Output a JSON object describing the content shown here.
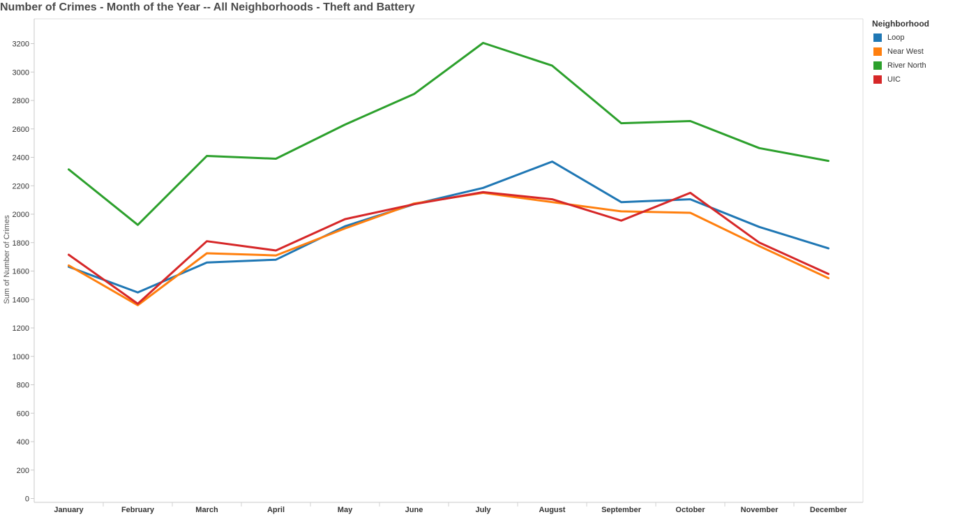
{
  "chart_data": {
    "type": "line",
    "title": "Number of Crimes - Month of the Year -- All Neighborhoods - Theft and Battery",
    "xlabel": "",
    "ylabel": "Sum of Number of Crimes",
    "ylim": [
      0,
      3300
    ],
    "yticks": [
      0,
      200,
      400,
      600,
      800,
      1000,
      1200,
      1400,
      1600,
      1800,
      2000,
      2200,
      2400,
      2600,
      2800,
      3000,
      3200
    ],
    "grid": false,
    "legend_position": "right",
    "legend_title": "Neighborhood",
    "categories": [
      "January",
      "February",
      "March",
      "April",
      "May",
      "June",
      "July",
      "August",
      "September",
      "October",
      "November",
      "December"
    ],
    "series": [
      {
        "name": "Loop",
        "color": "#1f77b4",
        "values": [
          1630,
          1450,
          1660,
          1680,
          1915,
          2070,
          2185,
          2370,
          2085,
          2105,
          1910,
          1760
        ]
      },
      {
        "name": "Near West",
        "color": "#ff7f0e",
        "values": [
          1640,
          1360,
          1725,
          1710,
          1900,
          2075,
          2150,
          2085,
          2020,
          2010,
          1775,
          1550
        ]
      },
      {
        "name": "River North",
        "color": "#2ca02c",
        "values": [
          2315,
          1925,
          2410,
          2390,
          2630,
          2845,
          3205,
          3045,
          2640,
          2655,
          2465,
          2375
        ]
      },
      {
        "name": "UIC",
        "color": "#d62728",
        "values": [
          1715,
          1370,
          1810,
          1745,
          1965,
          2070,
          2155,
          2105,
          1955,
          2150,
          1800,
          1580
        ]
      }
    ]
  }
}
